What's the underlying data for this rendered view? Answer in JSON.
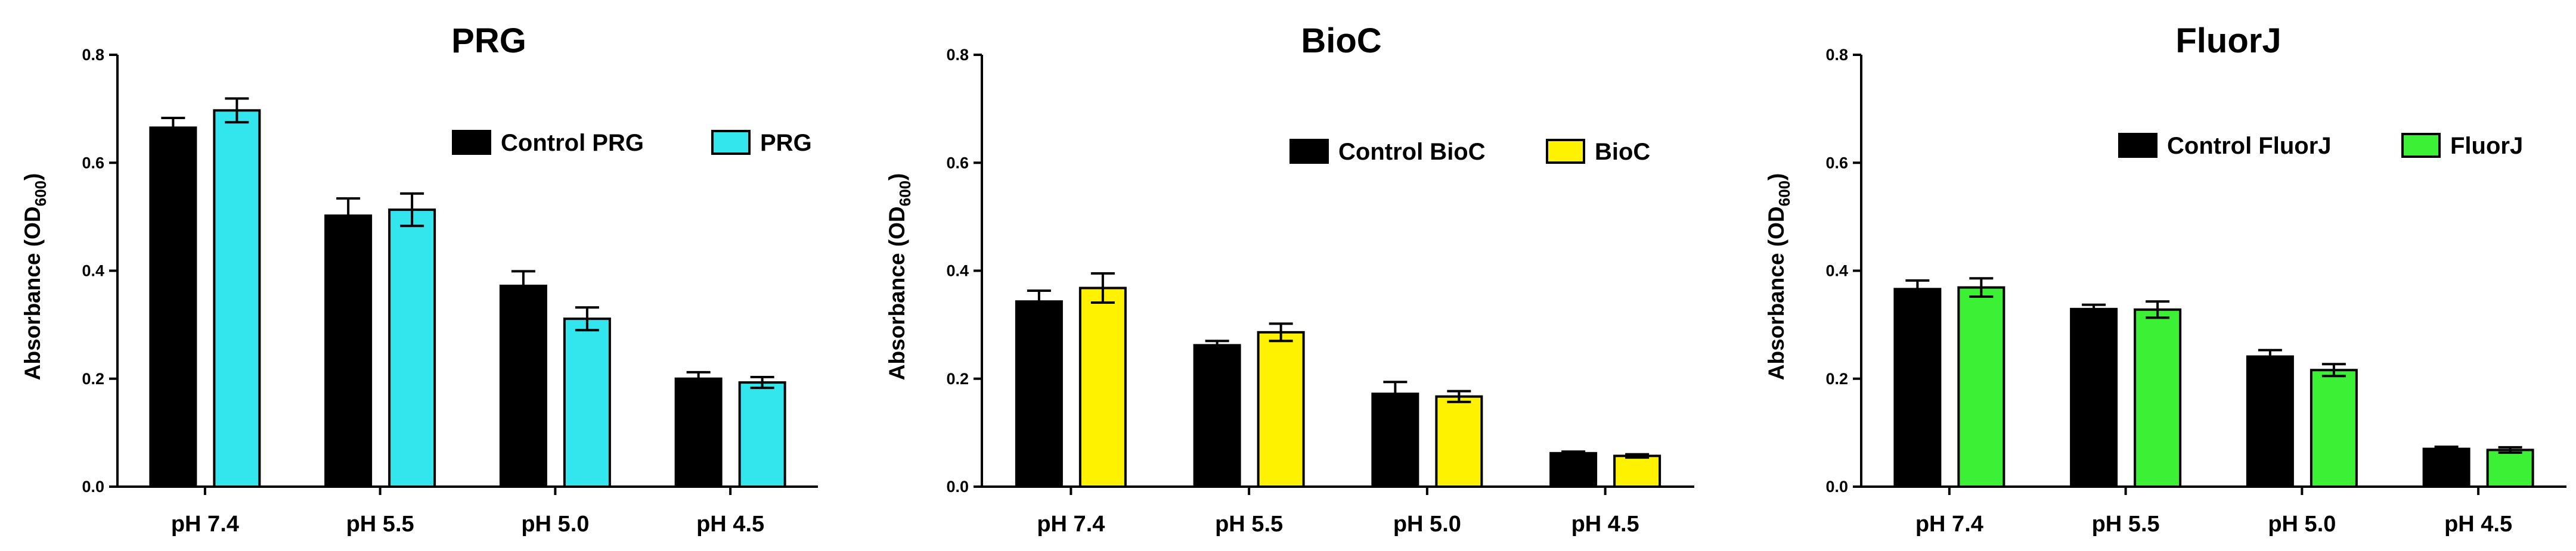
{
  "chart_data": [
    {
      "type": "bar",
      "title": "PRG",
      "xlabel": "",
      "ylabel": "Absorbance (OD",
      "ylabel_sub": "600",
      "ylabel_close": ")",
      "ylim": [
        0,
        0.8
      ],
      "yticks": [
        "0.0",
        "0.2",
        "0.4",
        "0.6",
        "0.8"
      ],
      "categories": [
        "pH 7.4",
        "pH 5.5",
        "pH 5.0",
        "pH 4.5"
      ],
      "legend_position": "top-right",
      "series": [
        {
          "name": "Control PRG",
          "color": "#000000",
          "values": [
            0.665,
            0.502,
            0.372,
            0.2
          ],
          "errors": [
            0.018,
            0.032,
            0.027,
            0.012
          ]
        },
        {
          "name": "PRG",
          "color": "#33e6ee",
          "values": [
            0.697,
            0.513,
            0.311,
            0.193
          ],
          "errors": [
            0.022,
            0.03,
            0.021,
            0.01
          ]
        }
      ]
    },
    {
      "type": "bar",
      "title": "BioC",
      "xlabel": "",
      "ylabel": "Absorbance (OD",
      "ylabel_sub": "600",
      "ylabel_close": ")",
      "ylim": [
        0,
        0.8
      ],
      "yticks": [
        "0.0",
        "0.2",
        "0.4",
        "0.6",
        "0.8"
      ],
      "categories": [
        "pH 7.4",
        "pH 5.5",
        "pH 5.0",
        "pH 4.5"
      ],
      "legend_position": "top-right",
      "series": [
        {
          "name": "Control BioC",
          "color": "#000000",
          "values": [
            0.343,
            0.262,
            0.172,
            0.062
          ],
          "errors": [
            0.02,
            0.008,
            0.022,
            0.003
          ]
        },
        {
          "name": "BioC",
          "color": "#fff200",
          "values": [
            0.368,
            0.286,
            0.167,
            0.057
          ],
          "errors": [
            0.027,
            0.016,
            0.01,
            0.003
          ]
        }
      ]
    },
    {
      "type": "bar",
      "title": "FluorJ",
      "xlabel": "",
      "ylabel": "Absorbance (OD",
      "ylabel_sub": "600",
      "ylabel_close": ")",
      "ylim": [
        0,
        0.8
      ],
      "yticks": [
        "0.0",
        "0.2",
        "0.4",
        "0.6",
        "0.8"
      ],
      "categories": [
        "pH 7.4",
        "pH 5.5",
        "pH 5.0",
        "pH 4.5"
      ],
      "legend_position": "top-right",
      "series": [
        {
          "name": "Control FluorJ",
          "color": "#000000",
          "values": [
            0.366,
            0.329,
            0.241,
            0.07
          ],
          "errors": [
            0.016,
            0.008,
            0.012,
            0.004
          ]
        },
        {
          "name": "FluorJ",
          "color": "#3cf035",
          "values": [
            0.369,
            0.328,
            0.216,
            0.068
          ],
          "errors": [
            0.017,
            0.015,
            0.011,
            0.005
          ]
        }
      ]
    }
  ]
}
